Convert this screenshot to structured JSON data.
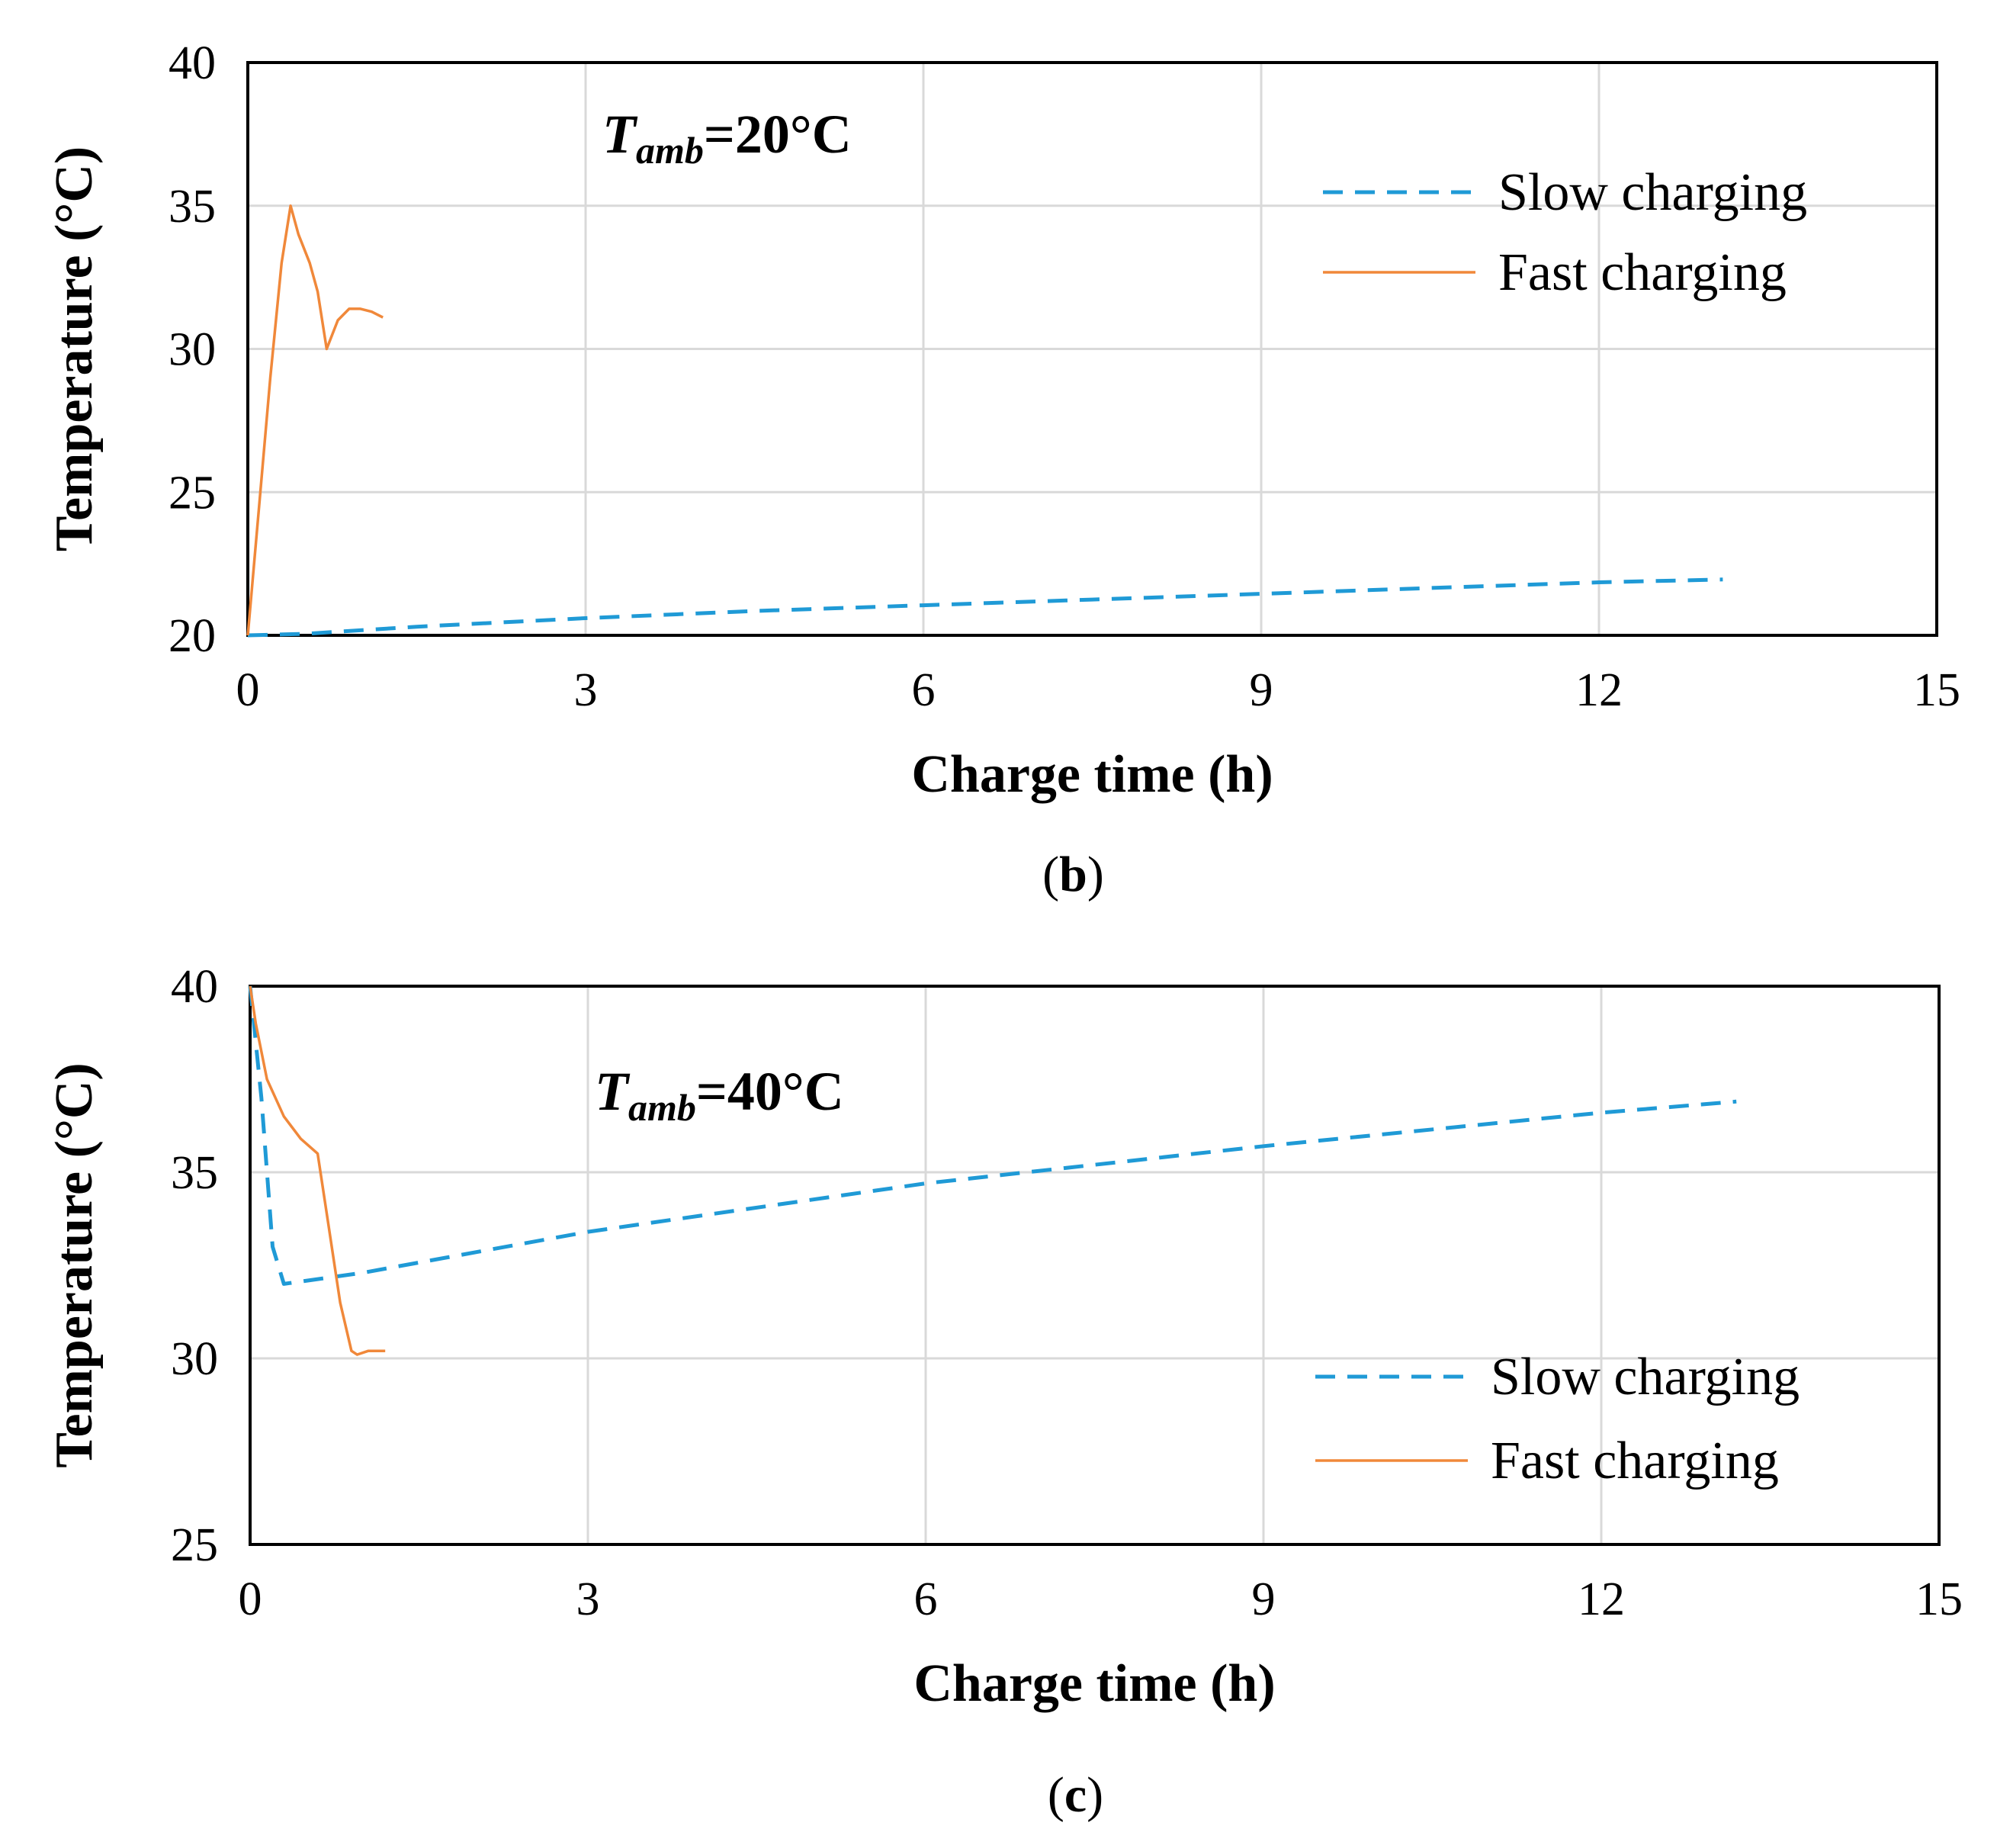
{
  "chart_data": [
    {
      "type": "line",
      "panel": "b",
      "caption_letter": "b",
      "annotation": {
        "symbol": "T",
        "subscript": "amb",
        "value": "=20°C"
      },
      "xlabel": "Charge time (h)",
      "ylabel": "Temperature (°C)",
      "xlim": [
        0,
        15
      ],
      "ylim": [
        20,
        40
      ],
      "xticks": [
        0,
        3,
        6,
        9,
        12,
        15
      ],
      "yticks": [
        20,
        25,
        30,
        35,
        40
      ],
      "grid": true,
      "legend": "top-right",
      "series": [
        {
          "name": "Slow charging",
          "color": "#1f9ad6",
          "style": "dashed",
          "x": [
            0,
            0.5,
            1.5,
            3,
            4.5,
            6,
            7.5,
            9,
            10.5,
            12,
            13.1
          ],
          "y": [
            20,
            20.05,
            20.3,
            20.6,
            20.85,
            21.05,
            21.25,
            21.45,
            21.65,
            21.85,
            21.95
          ]
        },
        {
          "name": "Fast charging",
          "color": "#f0883a",
          "style": "solid",
          "x": [
            0,
            0.1,
            0.2,
            0.3,
            0.38,
            0.45,
            0.55,
            0.62,
            0.7,
            0.8,
            0.9,
            1.0,
            1.1,
            1.2
          ],
          "y": [
            20,
            24.5,
            29,
            33,
            35,
            34,
            33,
            32,
            30,
            31,
            31.4,
            31.4,
            31.3,
            31.1
          ]
        }
      ]
    },
    {
      "type": "line",
      "panel": "c",
      "caption_letter": "c",
      "annotation": {
        "symbol": "T",
        "subscript": "amb",
        "value": "=40°C"
      },
      "xlabel": "Charge time (h)",
      "ylabel": "Temperature (°C)",
      "xlim": [
        0,
        15
      ],
      "ylim": [
        25,
        40
      ],
      "xticks": [
        0,
        3,
        6,
        9,
        12,
        15
      ],
      "yticks": [
        25,
        30,
        35,
        40
      ],
      "grid": true,
      "legend": "bottom-right",
      "series": [
        {
          "name": "Slow charging",
          "color": "#1f9ad6",
          "style": "dashed",
          "x": [
            0,
            0.1,
            0.2,
            0.3,
            1,
            3,
            6,
            9,
            12,
            13.2
          ],
          "y": [
            40,
            37,
            33,
            32,
            32.3,
            33.4,
            34.7,
            35.7,
            36.6,
            36.9
          ]
        },
        {
          "name": "Fast charging",
          "color": "#f0883a",
          "style": "solid",
          "x": [
            0,
            0.05,
            0.15,
            0.3,
            0.45,
            0.6,
            0.7,
            0.8,
            0.9,
            0.95,
            1.05,
            1.2
          ],
          "y": [
            40,
            39,
            37.5,
            36.5,
            35.9,
            35.5,
            33.5,
            31.5,
            30.2,
            30.1,
            30.2,
            30.2
          ]
        }
      ]
    }
  ]
}
